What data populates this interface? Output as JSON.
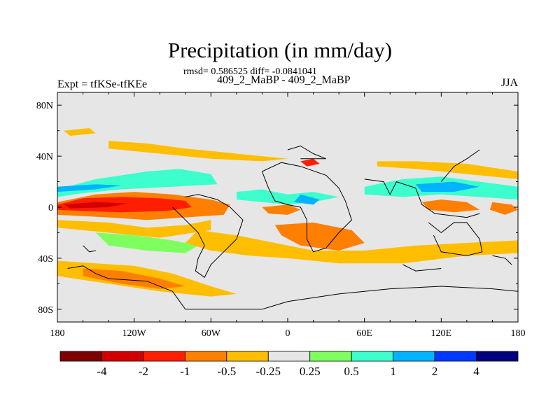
{
  "chart_data": {
    "type": "heatmap",
    "title": "Precipitation (in mm/day)",
    "stats_text": "rmsd= 0.586525 diff= -0.0841041",
    "case_label": "409_2_MaBP - 409_2_MaBP",
    "left_label": "Expt = tfKSe-tfKEe",
    "right_label": "JJA",
    "x_ticks": [
      "180",
      "120W",
      "60W",
      "0",
      "60E",
      "120E",
      "180"
    ],
    "x_tick_values": [
      -180,
      -120,
      -60,
      0,
      60,
      120,
      180
    ],
    "y_ticks": [
      "80N",
      "40N",
      "0",
      "40S",
      "80S"
    ],
    "y_tick_values": [
      80,
      40,
      0,
      -40,
      -80
    ],
    "xlim": [
      -180,
      180
    ],
    "ylim": [
      -90,
      90
    ],
    "colorbar": {
      "levels": [
        "-4",
        "-2",
        "-1",
        "-0.5",
        "-0.25",
        "0.25",
        "0.5",
        "1",
        "2",
        "4"
      ],
      "colors": [
        "#7f0000",
        "#d40000",
        "#ff1e00",
        "#ff7f00",
        "#ffbe00",
        "#e6e6e6",
        "#7fff5f",
        "#3dffce",
        "#00b4ff",
        "#0038ff",
        "#00007f"
      ]
    },
    "background_color": "#e6e6e6",
    "regions": [
      {
        "name": "tropical-pacific-south-orange-band",
        "value": -0.75,
        "points": [
          [
            -180,
            4
          ],
          [
            -150,
            10
          ],
          [
            -120,
            12
          ],
          [
            -90,
            10
          ],
          [
            -60,
            6
          ],
          [
            -45,
            2
          ],
          [
            -50,
            -6
          ],
          [
            -80,
            -8
          ],
          [
            -110,
            -10
          ],
          [
            -140,
            -8
          ],
          [
            -180,
            -6
          ]
        ]
      },
      {
        "name": "tropical-pacific-red-core",
        "value": -1.5,
        "points": [
          [
            -180,
            2
          ],
          [
            -160,
            7
          ],
          [
            -130,
            8
          ],
          [
            -100,
            7
          ],
          [
            -80,
            5
          ],
          [
            -75,
            0
          ],
          [
            -95,
            -3
          ],
          [
            -130,
            -4
          ],
          [
            -160,
            -3
          ],
          [
            -180,
            -2
          ]
        ]
      },
      {
        "name": "tropical-pacific-dark-red-core",
        "value": -3,
        "points": [
          [
            -175,
            2
          ],
          [
            -150,
            4
          ],
          [
            -125,
            3
          ],
          [
            -140,
            0
          ],
          [
            -170,
            -1
          ]
        ]
      },
      {
        "name": "tropical-pacific-north-light-blue",
        "value": 0.7,
        "points": [
          [
            -180,
            14
          ],
          [
            -150,
            22
          ],
          [
            -110,
            28
          ],
          [
            -85,
            30
          ],
          [
            -60,
            26
          ],
          [
            -55,
            18
          ],
          [
            -90,
            16
          ],
          [
            -130,
            14
          ],
          [
            -160,
            11
          ],
          [
            -180,
            8
          ]
        ]
      },
      {
        "name": "tropical-pacific-north-blue",
        "value": 1.5,
        "points": [
          [
            -180,
            16
          ],
          [
            -150,
            18
          ],
          [
            -130,
            17
          ],
          [
            -150,
            14
          ],
          [
            -180,
            12
          ]
        ]
      },
      {
        "name": "east-pacific-south-yellow",
        "value": -0.35,
        "points": [
          [
            -180,
            -10
          ],
          [
            -140,
            -12
          ],
          [
            -110,
            -16
          ],
          [
            -80,
            -14
          ],
          [
            -60,
            -10
          ],
          [
            -60,
            -18
          ],
          [
            -100,
            -24
          ],
          [
            -140,
            -20
          ],
          [
            -180,
            -16
          ]
        ]
      },
      {
        "name": "south-pacific-green",
        "value": 0.35,
        "points": [
          [
            -150,
            -20
          ],
          [
            -120,
            -22
          ],
          [
            -90,
            -26
          ],
          [
            -70,
            -30
          ],
          [
            -80,
            -36
          ],
          [
            -110,
            -34
          ],
          [
            -140,
            -30
          ]
        ]
      },
      {
        "name": "atlantic-blue-band",
        "value": 0.9,
        "points": [
          [
            -40,
            12
          ],
          [
            -20,
            14
          ],
          [
            0,
            10
          ],
          [
            20,
            12
          ],
          [
            40,
            8
          ],
          [
            20,
            4
          ],
          [
            0,
            2
          ],
          [
            -20,
            4
          ],
          [
            -40,
            6
          ]
        ]
      },
      {
        "name": "atlantic-dark-blue",
        "value": 1.8,
        "points": [
          [
            10,
            10
          ],
          [
            25,
            6
          ],
          [
            20,
            2
          ],
          [
            5,
            4
          ]
        ]
      },
      {
        "name": "atlantic-south-orange",
        "value": -0.7,
        "points": [
          [
            -20,
            0
          ],
          [
            0,
            2
          ],
          [
            10,
            -2
          ],
          [
            0,
            -6
          ],
          [
            -15,
            -5
          ]
        ]
      },
      {
        "name": "africa-south-orange",
        "value": -0.7,
        "points": [
          [
            -10,
            -14
          ],
          [
            20,
            -12
          ],
          [
            50,
            -18
          ],
          [
            60,
            -28
          ],
          [
            40,
            -34
          ],
          [
            10,
            -30
          ],
          [
            -5,
            -22
          ]
        ]
      },
      {
        "name": "south-atlantic-yellow-band",
        "value": -0.35,
        "points": [
          [
            -70,
            -18
          ],
          [
            -40,
            -22
          ],
          [
            -10,
            -28
          ],
          [
            20,
            -34
          ],
          [
            60,
            -34
          ],
          [
            100,
            -30
          ],
          [
            140,
            -28
          ],
          [
            180,
            -26
          ],
          [
            180,
            -36
          ],
          [
            140,
            -38
          ],
          [
            90,
            -44
          ],
          [
            40,
            -44
          ],
          [
            0,
            -40
          ],
          [
            -30,
            -38
          ],
          [
            -60,
            -34
          ],
          [
            -80,
            -28
          ]
        ]
      },
      {
        "name": "southern-ocean-yellow",
        "value": -0.35,
        "points": [
          [
            -180,
            -42
          ],
          [
            -150,
            -44
          ],
          [
            -120,
            -46
          ],
          [
            -90,
            -52
          ],
          [
            -60,
            -62
          ],
          [
            -40,
            -68
          ],
          [
            -60,
            -70
          ],
          [
            -100,
            -66
          ],
          [
            -140,
            -60
          ],
          [
            -180,
            -54
          ]
        ]
      },
      {
        "name": "southern-ocean-orange",
        "value": -0.7,
        "points": [
          [
            -160,
            -48
          ],
          [
            -130,
            -50
          ],
          [
            -100,
            -56
          ],
          [
            -80,
            -62
          ],
          [
            -100,
            -64
          ],
          [
            -130,
            -60
          ],
          [
            -160,
            -54
          ]
        ]
      },
      {
        "name": "indian-ocean-light-blue",
        "value": 0.7,
        "points": [
          [
            60,
            16
          ],
          [
            90,
            22
          ],
          [
            120,
            24
          ],
          [
            150,
            20
          ],
          [
            180,
            16
          ],
          [
            180,
            6
          ],
          [
            150,
            8
          ],
          [
            120,
            10
          ],
          [
            90,
            8
          ],
          [
            60,
            10
          ]
        ]
      },
      {
        "name": "indian-ocean-blue",
        "value": 1.6,
        "points": [
          [
            100,
            18
          ],
          [
            130,
            20
          ],
          [
            150,
            16
          ],
          [
            130,
            12
          ],
          [
            105,
            12
          ]
        ]
      },
      {
        "name": "north-indian-yellow",
        "value": -0.35,
        "points": [
          [
            70,
            32
          ],
          [
            100,
            30
          ],
          [
            140,
            26
          ],
          [
            180,
            22
          ],
          [
            180,
            28
          ],
          [
            140,
            34
          ],
          [
            100,
            36
          ],
          [
            70,
            36
          ]
        ]
      },
      {
        "name": "maritime-orange",
        "value": -0.7,
        "points": [
          [
            105,
            4
          ],
          [
            120,
            6
          ],
          [
            140,
            4
          ],
          [
            150,
            -2
          ],
          [
            130,
            -4
          ],
          [
            110,
            -2
          ]
        ]
      },
      {
        "name": "west-pacific-orange",
        "value": -0.7,
        "points": [
          [
            160,
            4
          ],
          [
            175,
            2
          ],
          [
            180,
            -2
          ],
          [
            170,
            -6
          ],
          [
            158,
            -2
          ]
        ]
      },
      {
        "name": "north-atlantic-yellow",
        "value": -0.35,
        "points": [
          [
            -140,
            52
          ],
          [
            -110,
            50
          ],
          [
            -80,
            46
          ],
          [
            -60,
            44
          ],
          [
            -40,
            42
          ],
          [
            -20,
            40
          ],
          [
            0,
            38
          ],
          [
            -20,
            36
          ],
          [
            -60,
            38
          ],
          [
            -100,
            42
          ],
          [
            -140,
            46
          ]
        ]
      },
      {
        "name": "arctic-yellow-patches",
        "value": -0.35,
        "points": [
          [
            -175,
            60
          ],
          [
            -155,
            62
          ],
          [
            -150,
            58
          ],
          [
            -170,
            56
          ]
        ]
      },
      {
        "name": "central-asia-red",
        "value": -1.5,
        "points": [
          [
            10,
            36
          ],
          [
            20,
            38
          ],
          [
            25,
            34
          ],
          [
            15,
            32
          ]
        ]
      }
    ],
    "coast_lines": [
      [
        [
          -160,
          -30
        ],
        [
          -155,
          -35
        ],
        [
          -150,
          -34
        ]
      ],
      [
        [
          -172,
          -48
        ],
        [
          -160,
          -46
        ],
        [
          -150,
          -52
        ],
        [
          -140,
          -56
        ],
        [
          -110,
          -58
        ],
        [
          -90,
          -66
        ],
        [
          -80,
          -80
        ],
        [
          -20,
          -80
        ],
        [
          0,
          -74
        ],
        [
          40,
          -68
        ],
        [
          80,
          -64
        ],
        [
          120,
          -62
        ],
        [
          160,
          -64
        ],
        [
          180,
          -66
        ]
      ],
      [
        [
          -90,
          0
        ],
        [
          -80,
          -10
        ],
        [
          -70,
          -20
        ],
        [
          -65,
          -30
        ],
        [
          -70,
          -40
        ],
        [
          -72,
          -50
        ],
        [
          -65,
          -55
        ],
        [
          -60,
          -45
        ],
        [
          -50,
          -35
        ],
        [
          -40,
          -25
        ],
        [
          -35,
          -10
        ],
        [
          -45,
          0
        ],
        [
          -55,
          6
        ],
        [
          -70,
          10
        ],
        [
          -80,
          8
        ]
      ],
      [
        [
          -20,
          28
        ],
        [
          -15,
          15
        ],
        [
          -10,
          5
        ],
        [
          0,
          2
        ],
        [
          10,
          0
        ],
        [
          15,
          -10
        ],
        [
          15,
          -25
        ],
        [
          20,
          -35
        ],
        [
          30,
          -32
        ],
        [
          40,
          -20
        ],
        [
          50,
          -10
        ],
        [
          45,
          5
        ],
        [
          40,
          15
        ],
        [
          30,
          25
        ],
        [
          10,
          32
        ],
        [
          -5,
          35
        ],
        [
          -20,
          28
        ]
      ],
      [
        [
          0,
          45
        ],
        [
          10,
          48
        ],
        [
          20,
          42
        ],
        [
          30,
          38
        ],
        [
          10,
          38
        ]
      ],
      [
        [
          60,
          22
        ],
        [
          75,
          20
        ],
        [
          80,
          10
        ],
        [
          85,
          20
        ],
        [
          100,
          15
        ],
        [
          105,
          2
        ],
        [
          115,
          -5
        ],
        [
          140,
          -8
        ],
        [
          150,
          -5
        ]
      ],
      [
        [
          110,
          -12
        ],
        [
          120,
          -20
        ],
        [
          130,
          -12
        ],
        [
          140,
          -12
        ],
        [
          150,
          -25
        ],
        [
          152,
          -35
        ],
        [
          140,
          -38
        ],
        [
          120,
          -35
        ],
        [
          114,
          -22
        ]
      ],
      [
        [
          120,
          20
        ],
        [
          130,
          32
        ],
        [
          140,
          38
        ],
        [
          150,
          45
        ]
      ],
      [
        [
          160,
          -38
        ],
        [
          170,
          -40
        ],
        [
          175,
          -45
        ]
      ],
      [
        [
          90,
          -45
        ],
        [
          100,
          -50
        ],
        [
          120,
          -48
        ]
      ]
    ]
  }
}
